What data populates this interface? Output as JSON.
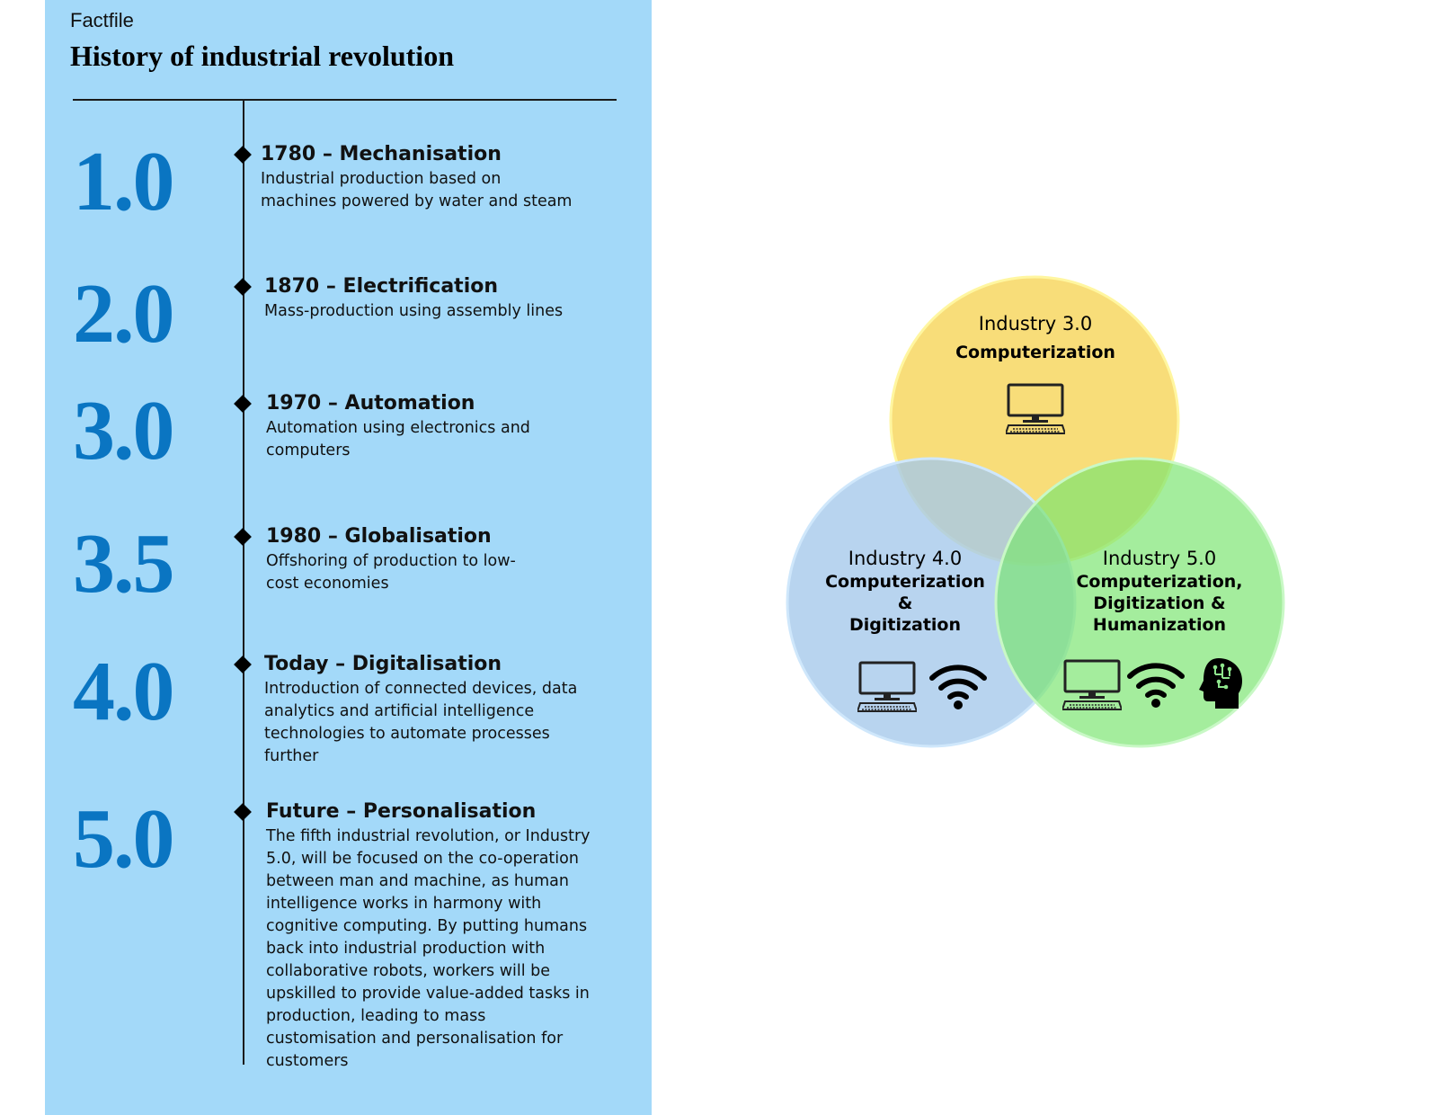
{
  "factfile": {
    "kicker": "Factfile",
    "title": "History of industrial revolution",
    "eras": [
      {
        "number": "1.0",
        "heading": "1780 – Mechanisation",
        "description": "Industrial production based on machines powered by water and steam"
      },
      {
        "number": "2.0",
        "heading": "1870 – Electrification",
        "description": "Mass-production using assembly lines"
      },
      {
        "number": "3.0",
        "heading": "1970 – Automation",
        "description": "Automation using electronics and computers"
      },
      {
        "number": "3.5",
        "heading": "1980 – Globalisation",
        "description": "Offshoring of production to low-cost economies"
      },
      {
        "number": "4.0",
        "heading": "Today – Digitalisation",
        "description": "Introduction of connected devices, data analytics and artificial intelligence technologies to automate processes further"
      },
      {
        "number": "5.0",
        "heading": "Future – Personalisation",
        "description": "The fifth industrial revolution, or Industry 5.0, will be focused on the co-operation between man and machine, as human intelligence works in harmony with cognitive computing. By putting humans back into industrial production with collaborative robots, workers will be upskilled to provide value-added tasks in production, leading to mass customisation and personalisation for customers"
      }
    ]
  },
  "venn": {
    "circles": [
      {
        "title": "Industry 3.0",
        "caption": "Computerization",
        "color": "#f7d96a",
        "icons": [
          "computer-icon"
        ]
      },
      {
        "title": "Industry 4.0",
        "caption_lines": [
          "Computerization",
          "&",
          "Digitization"
        ],
        "color": "#a4c8ea",
        "icons": [
          "computer-icon",
          "wifi-icon"
        ]
      },
      {
        "title": "Industry 5.0",
        "caption_lines": [
          "Computerization,",
          "Digitization &",
          "Humanization"
        ],
        "color": "#8ee58c",
        "icons": [
          "computer-icon",
          "wifi-icon",
          "brain-head-icon"
        ]
      }
    ]
  },
  "colors": {
    "panel": "#a3d9f9",
    "era_number": "#0a75c2"
  }
}
